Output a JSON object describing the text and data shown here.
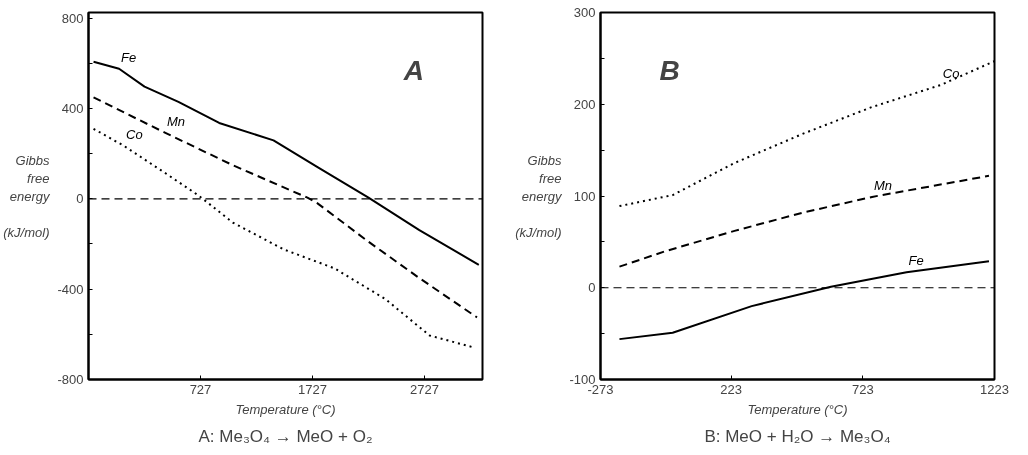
{
  "chart_data": [
    {
      "type": "line",
      "xlabel": "Temperature (°C)",
      "ylabel": "Gibbs\nfree\nenergy\n\n(kJ/mol)",
      "annotations": [
        "A",
        "A: Me₃O₄ → MeO + O₂"
      ],
      "xlim": [
        -273,
        3245
      ],
      "ylim": [
        -800,
        825
      ],
      "xticks": [
        727,
        1727,
        2727
      ],
      "yticks": [
        -800,
        {
          "value": -600,
          "label": null
        },
        -400,
        {
          "value": -200,
          "label": null
        },
        0,
        {
          "value": 200,
          "label": null
        },
        400,
        {
          "value": 600,
          "label": null
        },
        800
      ],
      "grid": false,
      "ref_lines": [
        {
          "axis": "y",
          "value": 0,
          "label": null,
          "color": "#000000",
          "line_style": "dashed"
        }
      ],
      "series": [
        {
          "name": "Fe",
          "color": "#000000",
          "line_style": "solid",
          "x": [
            -228,
            0,
            227,
            530,
            894,
            1379,
            1772,
            2227,
            2681,
            3212
          ],
          "values": [
            607,
            576,
            497,
            429,
            336,
            259,
            140,
            5,
            -139,
            -292
          ]
        },
        {
          "name": "Mn",
          "color": "#000000",
          "line_style": "dashed",
          "x": [
            -228,
            409,
            1015,
            1682,
            1772,
            2227,
            2681,
            3196
          ],
          "values": [
            449,
            293,
            149,
            5,
            -20,
            -190,
            -351,
            -525
          ]
        },
        {
          "name": "Co",
          "color": "#000000",
          "line_style": "dotted",
          "x": [
            -228,
            45,
            409,
            712,
            1015,
            1470,
            1924,
            2378,
            2772,
            3151
          ],
          "values": [
            310,
            234,
            115,
            14,
            -105,
            -224,
            -308,
            -444,
            -605,
            -656
          ]
        }
      ]
    },
    {
      "type": "line",
      "xlabel": "Temperature (°C)",
      "ylabel": "Gibbs\nfree\nenergy\n\n(kJ/mol)",
      "annotations": [
        "B",
        "B: MeO + H₂O → Me₃O₄"
      ],
      "xlim": [
        -273,
        1223
      ],
      "ylim": [
        -100,
        300
      ],
      "xticks": [
        -273,
        223,
        723,
        1223
      ],
      "yticks": [
        -100,
        {
          "value": -50,
          "label": null
        },
        0,
        {
          "value": 50,
          "label": null
        },
        100,
        {
          "value": 150,
          "label": null
        },
        200,
        {
          "value": 250,
          "label": null
        },
        300
      ],
      "grid": false,
      "ref_lines": [
        {
          "axis": "y",
          "value": 0,
          "label": null,
          "color": "#000000",
          "line_style": "dashed"
        }
      ],
      "series": [
        {
          "name": "Co",
          "color": "#000000",
          "line_style": "dotted",
          "x": [
            -201,
            1,
            236,
            497,
            758,
            1019,
            1223
          ],
          "values": [
            89,
            101,
            136,
            168,
            197,
            221,
            247
          ]
        },
        {
          "name": "Mn",
          "color": "#000000",
          "line_style": "dashed",
          "x": [
            -201,
            -25,
            236,
            497,
            758,
            1202
          ],
          "values": [
            23,
            40,
            62,
            82,
            99,
            122
          ]
        },
        {
          "name": "Fe",
          "color": "#000000",
          "line_style": "solid",
          "x": [
            -201,
            1,
            301,
            602,
            889,
            1202
          ],
          "values": [
            -56,
            -49,
            -20,
            1,
            17,
            29
          ]
        }
      ]
    }
  ]
}
